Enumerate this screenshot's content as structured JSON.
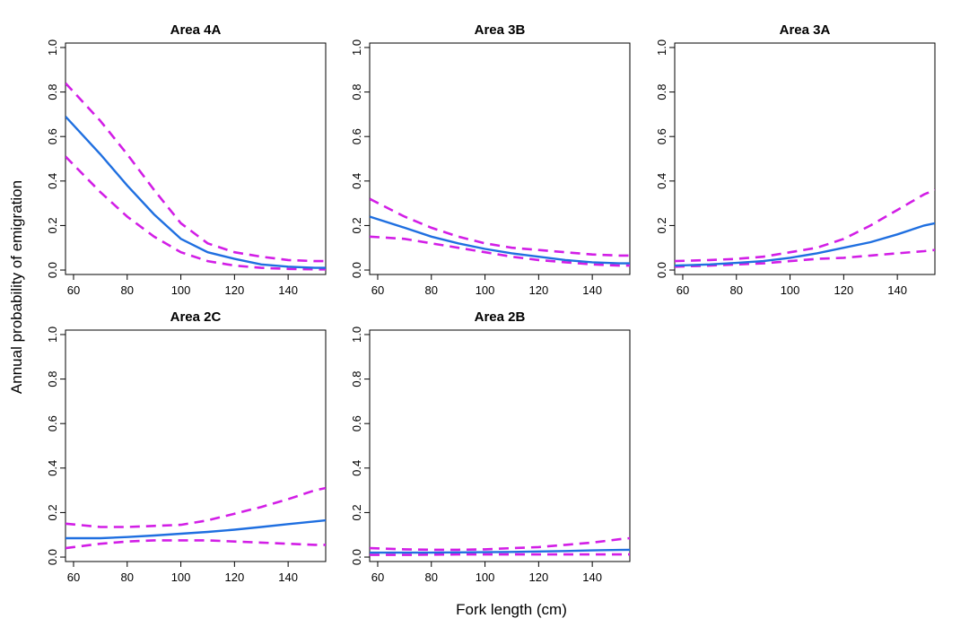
{
  "chart_data": {
    "type": "line",
    "ylabel": "Annual probability of emigration",
    "xlabel": "Fork length (cm)",
    "xlim": [
      57,
      154
    ],
    "ylim": [
      -0.02,
      1.02
    ],
    "x_ticks": [
      60,
      80,
      100,
      120,
      140
    ],
    "x_tick_labels": [
      "60",
      "80",
      "100",
      "120",
      "140"
    ],
    "y_ticks": [
      0.0,
      0.2,
      0.4,
      0.6,
      0.8,
      1.0
    ],
    "y_tick_labels": [
      "0.0",
      "0.2",
      "0.4",
      "0.6",
      "0.8",
      "1.0"
    ],
    "colors": {
      "estimate": "#1f6fe0",
      "ci": "#d21ee6"
    },
    "panels": [
      {
        "title": "Area 4A",
        "x": [
          57,
          70,
          80,
          90,
          100,
          110,
          120,
          130,
          140,
          150,
          154
        ],
        "estimate": [
          0.69,
          0.52,
          0.38,
          0.25,
          0.14,
          0.08,
          0.05,
          0.025,
          0.015,
          0.01,
          0.01
        ],
        "lower": [
          0.51,
          0.35,
          0.24,
          0.15,
          0.08,
          0.04,
          0.02,
          0.01,
          0.005,
          0.003,
          0.003
        ],
        "upper": [
          0.84,
          0.67,
          0.52,
          0.36,
          0.21,
          0.12,
          0.08,
          0.06,
          0.045,
          0.04,
          0.04
        ]
      },
      {
        "title": "Area 3B",
        "x": [
          57,
          70,
          80,
          90,
          100,
          110,
          120,
          130,
          140,
          150,
          154
        ],
        "estimate": [
          0.24,
          0.19,
          0.15,
          0.12,
          0.095,
          0.075,
          0.06,
          0.045,
          0.035,
          0.03,
          0.03
        ],
        "lower": [
          0.15,
          0.14,
          0.12,
          0.1,
          0.08,
          0.06,
          0.045,
          0.035,
          0.025,
          0.02,
          0.02
        ],
        "upper": [
          0.32,
          0.24,
          0.19,
          0.15,
          0.12,
          0.1,
          0.09,
          0.08,
          0.07,
          0.065,
          0.065
        ]
      },
      {
        "title": "Area 3A",
        "x": [
          57,
          70,
          80,
          90,
          100,
          110,
          120,
          130,
          140,
          150,
          154
        ],
        "estimate": [
          0.02,
          0.025,
          0.032,
          0.04,
          0.055,
          0.075,
          0.1,
          0.125,
          0.16,
          0.2,
          0.21
        ],
        "lower": [
          0.015,
          0.02,
          0.025,
          0.03,
          0.04,
          0.05,
          0.055,
          0.065,
          0.075,
          0.085,
          0.09
        ],
        "upper": [
          0.04,
          0.045,
          0.05,
          0.06,
          0.08,
          0.1,
          0.14,
          0.2,
          0.27,
          0.34,
          0.36
        ]
      },
      {
        "title": "Area 2C",
        "x": [
          57,
          70,
          80,
          90,
          100,
          110,
          120,
          130,
          140,
          150,
          154
        ],
        "estimate": [
          0.085,
          0.085,
          0.09,
          0.097,
          0.105,
          0.113,
          0.123,
          0.135,
          0.148,
          0.16,
          0.165
        ],
        "lower": [
          0.04,
          0.06,
          0.07,
          0.075,
          0.075,
          0.075,
          0.07,
          0.065,
          0.06,
          0.055,
          0.055
        ],
        "upper": [
          0.15,
          0.135,
          0.135,
          0.14,
          0.145,
          0.165,
          0.195,
          0.225,
          0.26,
          0.3,
          0.31
        ]
      },
      {
        "title": "Area 2B",
        "x": [
          57,
          70,
          80,
          90,
          100,
          110,
          120,
          130,
          140,
          150,
          154
        ],
        "estimate": [
          0.02,
          0.02,
          0.02,
          0.021,
          0.022,
          0.023,
          0.025,
          0.027,
          0.03,
          0.032,
          0.033
        ],
        "lower": [
          0.01,
          0.01,
          0.011,
          0.012,
          0.012,
          0.012,
          0.012,
          0.012,
          0.012,
          0.012,
          0.012
        ],
        "upper": [
          0.04,
          0.035,
          0.033,
          0.033,
          0.035,
          0.04,
          0.045,
          0.055,
          0.065,
          0.08,
          0.085
        ]
      }
    ]
  }
}
